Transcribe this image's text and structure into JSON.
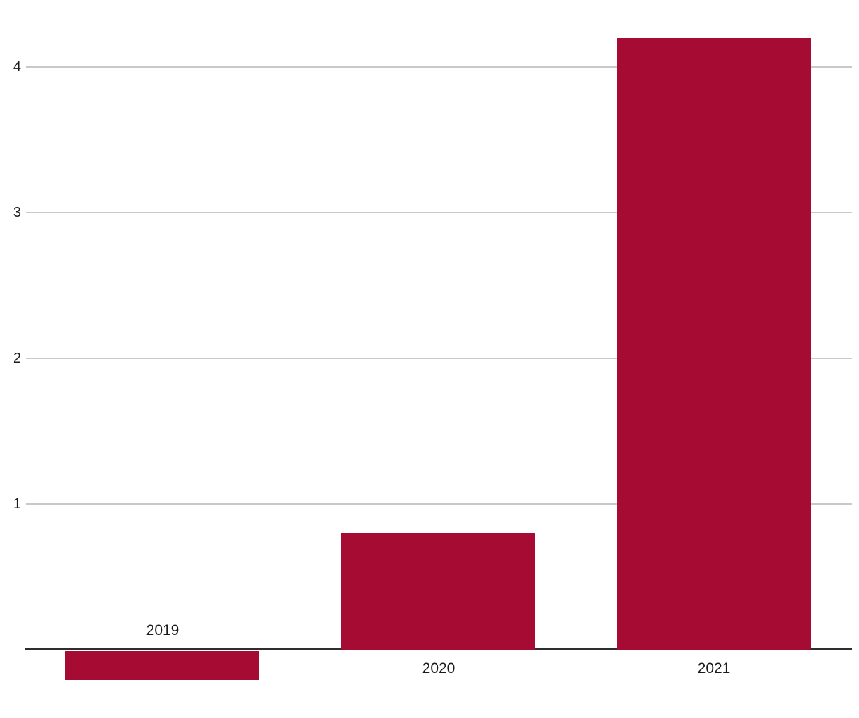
{
  "chart_data": {
    "type": "bar",
    "categories": [
      "2019",
      "2020",
      "2021"
    ],
    "values": [
      -0.2,
      0.8,
      4.2
    ],
    "title": "",
    "xlabel": "",
    "ylabel": "",
    "ylim": [
      -0.47,
      4.42
    ],
    "yticks": [
      1,
      2,
      3,
      4
    ],
    "grid": true,
    "legend": "none",
    "layout_hints": {
      "gridlines_horizontal_only": true,
      "zero_axis_emphasized": true,
      "negative_bar_label_above_axis": true
    },
    "colors": {
      "bar": "#a50b33",
      "gridline": "#c9c9c9",
      "axis_line": "#2e2e2e",
      "tick_text": "#1a1a1a",
      "category_text": "#1a1a1a",
      "background": "#ffffff"
    }
  }
}
